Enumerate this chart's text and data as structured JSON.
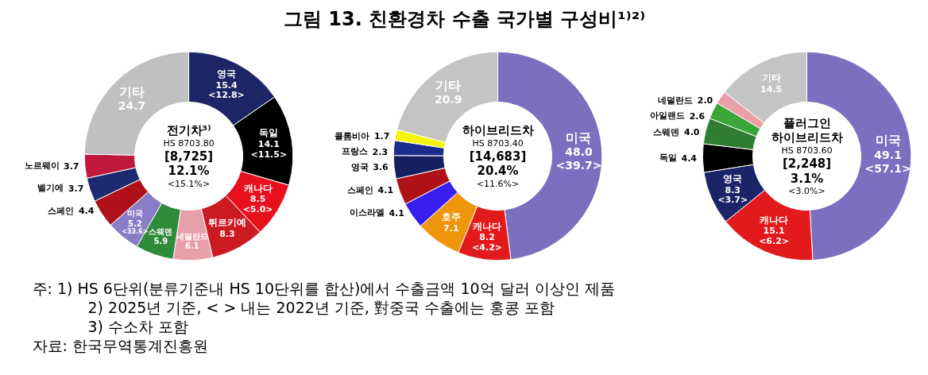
{
  "chart_data": [
    {
      "type": "other",
      "title": "그림 13. 친환경차 수출 국가별 구성비¹⁾²⁾",
      "annotations": [
        "주: 1) HS 6단위(분류기준내 HS 10단위를 합산)에서 수출금액 10억 달러 이상인 제품",
        "2) 2025년 기준, <   > 내는 2022년 기준, 對중국 수출에는 홍콩 포함",
        "3) 수소차 포함",
        "자료: 한국무역통계진흥원"
      ]
    },
    {
      "type": "donut",
      "title": "전기차³⁾",
      "subtitle": "HS 8703.80",
      "annotations": [
        "[8,725]",
        "12.1%",
        "<15.1%>"
      ],
      "legend": false,
      "categories": [
        "영국",
        "독일",
        "캐나다",
        "튀르키예",
        "네덜란드",
        "스웨덴",
        "미국",
        "스페인",
        "벨기에",
        "노르웨이",
        "기타"
      ],
      "values": [
        15.4,
        14.1,
        8.5,
        8.3,
        6.1,
        5.9,
        5.2,
        4.4,
        3.7,
        3.7,
        24.7
      ],
      "value_labels": [
        "15.4 <12.8>",
        "14.1 <11.5>",
        "8.5 <5.0>",
        "8.3",
        "6.1",
        "5.9",
        "5.2 <33.6>",
        "4.4",
        "3.7",
        "3.7",
        "24.7"
      ],
      "colors": [
        "#1c2566",
        "#000000",
        "#e8101c",
        "#cc1a22",
        "#e8a0a8",
        "#2e8b3a",
        "#8b7cc8",
        "#b0101a",
        "#1c2a70",
        "#c0183c",
        "#c0c0c0"
      ]
    },
    {
      "type": "donut",
      "title": "하이브리드차",
      "subtitle": "HS 8703.40",
      "annotations": [
        "[14,683]",
        "20.4%",
        "<11.6%>"
      ],
      "legend": false,
      "categories": [
        "미국",
        "캐나다",
        "호주",
        "이스라엘",
        "스페인",
        "영국",
        "프랑스",
        "콜롬비아",
        "기타"
      ],
      "values": [
        48.0,
        8.2,
        7.1,
        4.1,
        4.1,
        3.6,
        2.3,
        1.7,
        20.9
      ],
      "value_labels": [
        "48.0 <39.7>",
        "8.2 <4.2>",
        "7.1",
        "4.1",
        "4.1",
        "3.6",
        "2.3",
        "1.7",
        "20.9"
      ],
      "colors": [
        "#7b6fbf",
        "#e31a1c",
        "#f0960c",
        "#3a1ef0",
        "#b01018",
        "#142060",
        "#1c2c8c",
        "#f5f50a",
        "#c4c4c4"
      ]
    },
    {
      "type": "donut",
      "title": "플러그인 하이브리드차",
      "subtitle": "HS 8703.60",
      "annotations": [
        "[2,248]",
        "3.1%",
        "<3.0%>"
      ],
      "legend": false,
      "categories": [
        "미국",
        "캐나다",
        "영국",
        "독일",
        "스웨덴",
        "아일랜드",
        "네덜란드",
        "기타"
      ],
      "values": [
        49.1,
        15.1,
        8.3,
        4.4,
        4.0,
        2.6,
        2.0,
        14.5
      ],
      "value_labels": [
        "49.1 <57.1>",
        "15.1 <6.2>",
        "8.3 <3.7>",
        "4.4",
        "4.0",
        "2.6",
        "2.0",
        "14.5"
      ],
      "colors": [
        "#7b6fbf",
        "#e31a1c",
        "#1a2466",
        "#000000",
        "#2e7d32",
        "#3aa63a",
        "#eba0a8",
        "#c4c4c4"
      ]
    }
  ]
}
